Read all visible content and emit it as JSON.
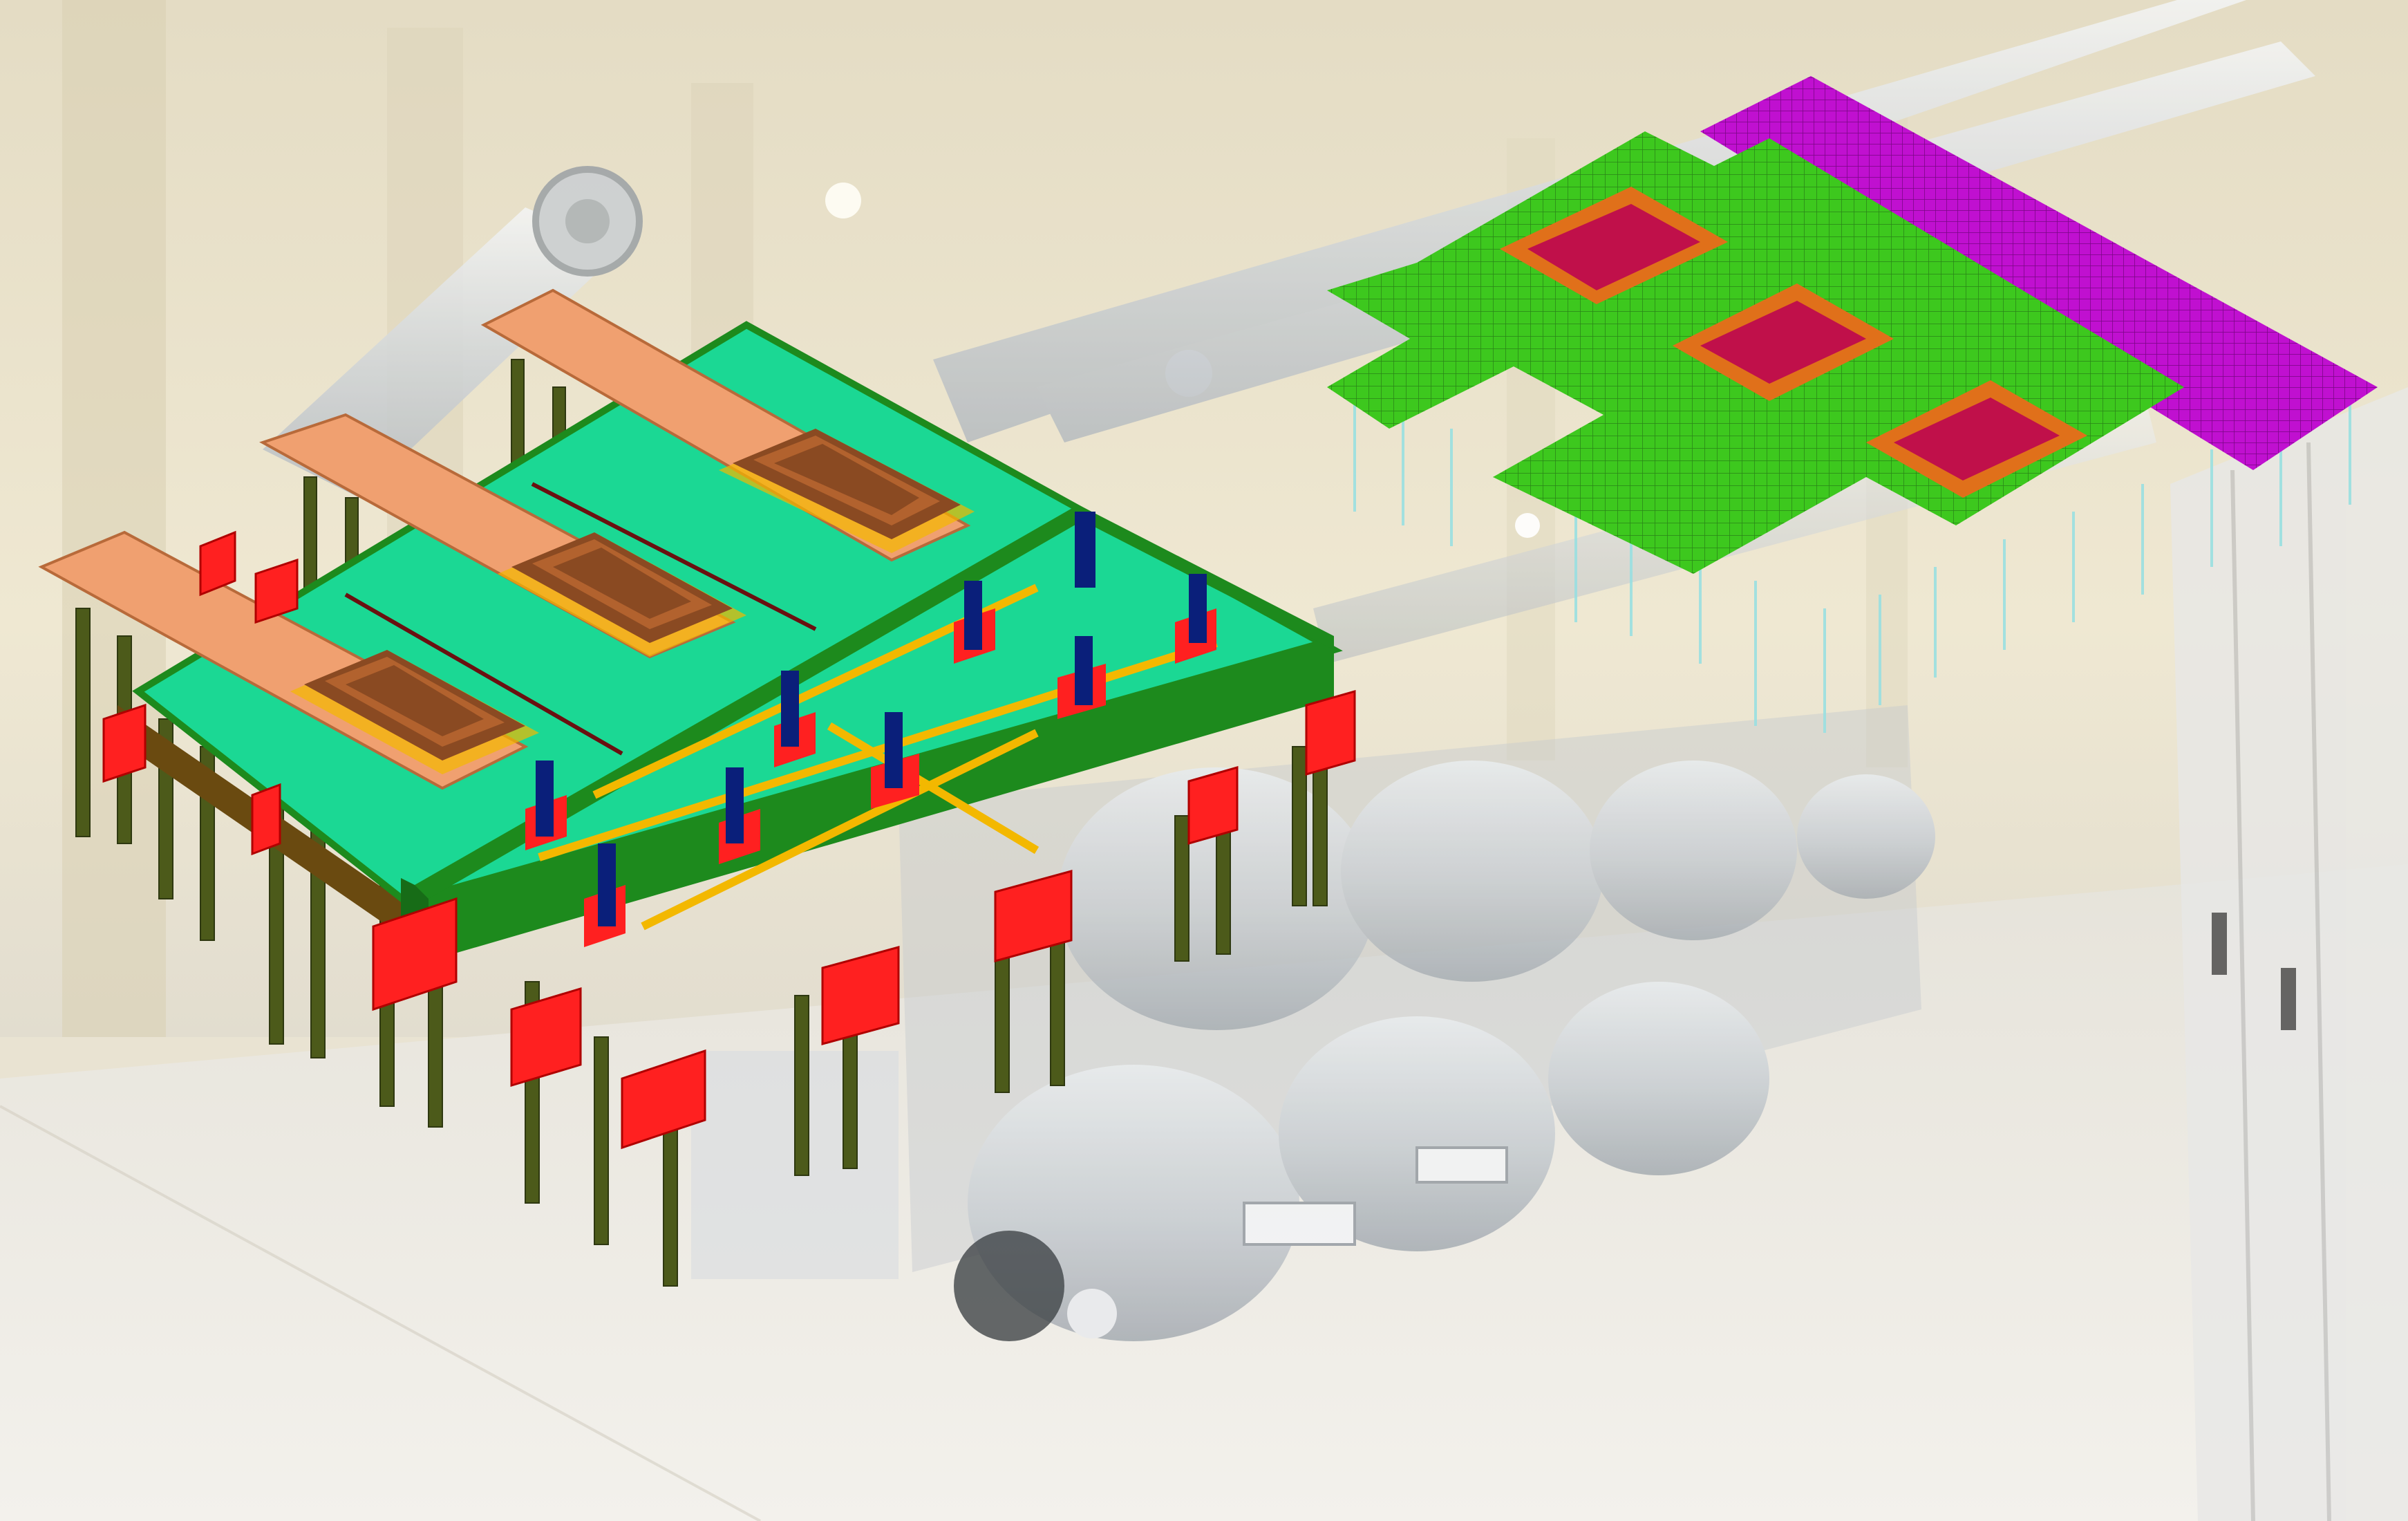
{
  "image": {
    "kind": "composite-render",
    "background_subject": "gas-insulated-substation-hall",
    "overlays": [
      "foundation-slab-3d-model",
      "foundation-fe-mesh-model"
    ]
  },
  "colors": {
    "hall_wall": "#efe7cf",
    "hall_floor": "#ece9e2",
    "pipe": "#d9dcde",
    "gis_body": "#cfd3d6",
    "slab_top": "#1bd894",
    "slab_edge": "#1d8a1d",
    "plinth": "#f0a070",
    "plinth_recess": "#8a4a22",
    "pile": "#4c5a1a",
    "pile_cap": "#ff2020",
    "column_stub": "#0a1f7a",
    "beam_line": "#f3b800",
    "mesh_green": "#3dc81e",
    "mesh_magenta": "#c010d0",
    "mesh_crimson": "#c0104a",
    "mesh_orange": "#e0701a"
  }
}
